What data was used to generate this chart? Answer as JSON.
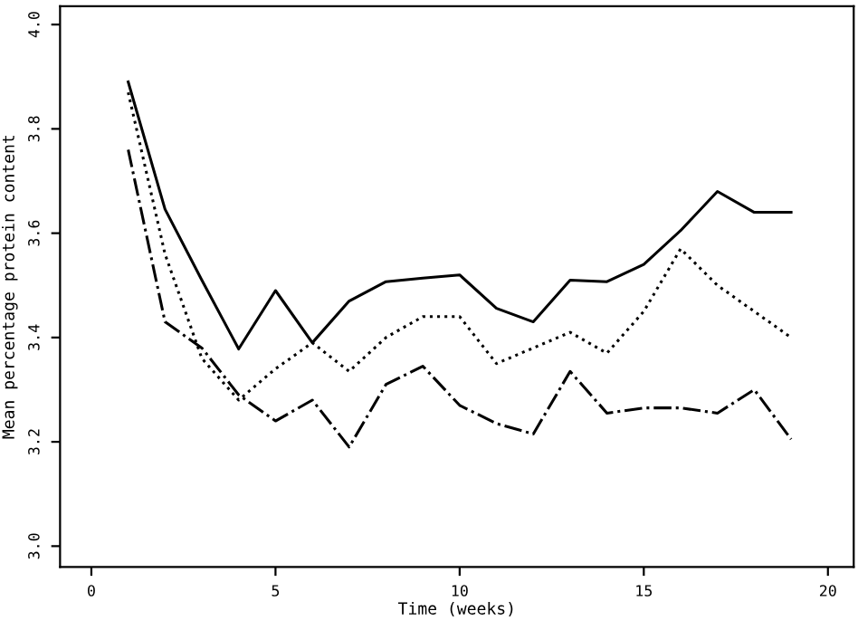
{
  "chart_data": {
    "type": "line",
    "xlabel": "Time (weeks)",
    "ylabel": "Mean percentage protein content",
    "x": [
      1,
      2,
      3,
      4,
      5,
      6,
      7,
      8,
      9,
      10,
      11,
      12,
      13,
      14,
      15,
      16,
      17,
      18,
      19
    ],
    "series": [
      {
        "color": "#000000",
        "line_style": "solid",
        "values": [
          3.89,
          3.646,
          3.51,
          3.378,
          3.49,
          3.39,
          3.47,
          3.507,
          3.514,
          3.52,
          3.456,
          3.43,
          3.51,
          3.507,
          3.54,
          3.605,
          3.68,
          3.64,
          3.64
        ]
      },
      {
        "color": "#000000",
        "line_style": "dotted",
        "values": [
          3.87,
          3.56,
          3.36,
          3.28,
          3.34,
          3.39,
          3.335,
          3.4,
          3.44,
          3.44,
          3.35,
          3.38,
          3.41,
          3.37,
          3.45,
          3.57,
          3.5,
          3.45,
          3.4
        ]
      },
      {
        "color": "#000000",
        "line_style": "dashdot",
        "values": [
          3.76,
          3.43,
          3.38,
          3.29,
          3.24,
          3.28,
          3.19,
          3.31,
          3.345,
          3.27,
          3.235,
          3.215,
          3.335,
          3.255,
          3.265,
          3.265,
          3.255,
          3.3,
          3.205
        ]
      }
    ],
    "xlim": [
      -0.85,
      20.7
    ],
    "ylim": [
      2.96,
      4.035
    ],
    "xticks": [
      0,
      5,
      10,
      15,
      20
    ],
    "yticks": [
      {
        "value": 3.0,
        "label": "3.0"
      },
      {
        "value": 3.2,
        "label": "3.2"
      },
      {
        "value": 3.4,
        "label": "3.4"
      },
      {
        "value": 3.6,
        "label": "3.6"
      },
      {
        "value": 3.8,
        "label": "3.8"
      },
      {
        "value": 4.0,
        "label": "4.0"
      }
    ],
    "grid": false,
    "legend": false,
    "marker": "none"
  }
}
